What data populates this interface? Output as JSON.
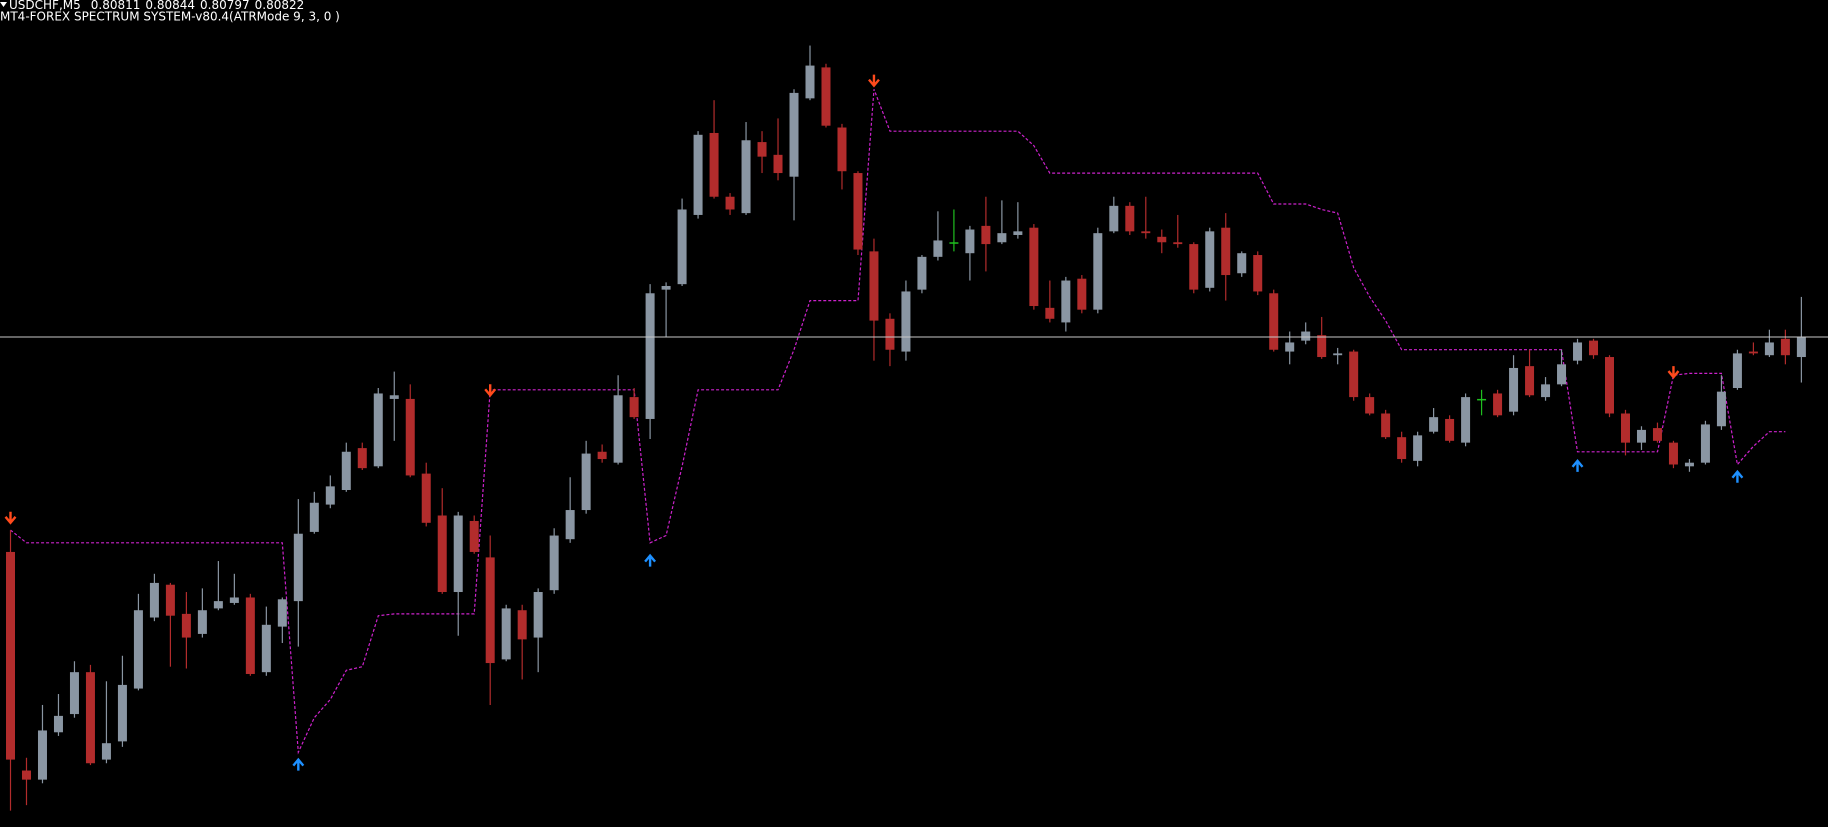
{
  "chart_data": {
    "type": "candlestick",
    "symbol": "USDCHF,M5",
    "indicator": "MT4-FOREX SPECTRUM SYSTEM-v80.4(ATRMode 9, 3, 0 )",
    "background": "#000000",
    "up_color": "#8a96a3",
    "down_color": "#b22c2c",
    "doji_color": "#1fbf1f",
    "ylim": [
      0.80553,
      0.81007
    ],
    "bid_line": {
      "color": "#c8c8c8"
    },
    "open": [
      0.80704,
      0.80584,
      0.80579,
      0.80605,
      0.80615,
      0.80638,
      0.8059,
      0.806,
      0.80629,
      0.80668,
      0.80686,
      0.8067,
      0.80659,
      0.80673,
      0.80676,
      0.80679,
      0.80638,
      0.80663,
      0.80677,
      0.80715,
      0.8073,
      0.80738,
      0.80761,
      0.80751,
      0.80788,
      0.80788,
      0.80747,
      0.80724,
      0.80682,
      0.80721,
      0.80701,
      0.80645,
      0.80672,
      0.80657,
      0.80683,
      0.80711,
      0.80727,
      0.80759,
      0.80753,
      0.80789,
      0.80777,
      0.80848,
      0.80851,
      0.80889,
      0.80934,
      0.80899,
      0.8089,
      0.80929,
      0.80922,
      0.8091,
      0.80953,
      0.8097,
      0.80937,
      0.80912,
      0.80869,
      0.80832,
      0.80814,
      0.80848,
      0.80866,
      0.80874,
      0.80868,
      0.80883,
      0.80874,
      0.80878,
      0.80882,
      0.80838,
      0.8083,
      0.80854,
      0.80837,
      0.8088,
      0.80894,
      0.8088,
      0.80877,
      0.80874,
      0.80873,
      0.80849,
      0.80882,
      0.80857,
      0.80867,
      0.80846,
      0.80814,
      0.8082,
      0.80823,
      0.80812,
      0.80814,
      0.80789,
      0.8078,
      0.80767,
      0.80754,
      0.8077,
      0.80777,
      0.80764,
      0.80788,
      0.80791,
      0.80781,
      0.80806,
      0.80789,
      0.80796,
      0.80809,
      0.8082,
      0.80811,
      0.8078,
      0.80764,
      0.80772,
      0.80764,
      0.80751,
      0.80753,
      0.80773,
      0.80794,
      0.80814,
      0.80812,
      0.80821,
      0.80811
    ],
    "high": [
      0.80716,
      0.80591,
      0.8062,
      0.80626,
      0.80644,
      0.80642,
      0.80633,
      0.80647,
      0.80681,
      0.80692,
      0.80687,
      0.80682,
      0.80684,
      0.80699,
      0.80692,
      0.80681,
      0.80674,
      0.80679,
      0.80733,
      0.80737,
      0.80746,
      0.80764,
      0.80764,
      0.80794,
      0.80803,
      0.80796,
      0.80753,
      0.80739,
      0.80726,
      0.80724,
      0.80713,
      0.80675,
      0.80675,
      0.80684,
      0.80717,
      0.80745,
      0.80765,
      0.80763,
      0.80801,
      0.80794,
      0.80851,
      0.80852,
      0.80898,
      0.80935,
      0.80952,
      0.80901,
      0.8094,
      0.80935,
      0.80942,
      0.80958,
      0.80982,
      0.80972,
      0.80939,
      0.80913,
      0.80876,
      0.80835,
      0.80853,
      0.80867,
      0.80891,
      0.80892,
      0.80883,
      0.80899,
      0.80897,
      0.80896,
      0.80884,
      0.80853,
      0.80855,
      0.80856,
      0.80882,
      0.80899,
      0.80896,
      0.80899,
      0.80881,
      0.80889,
      0.80874,
      0.80882,
      0.8089,
      0.80869,
      0.80869,
      0.80848,
      0.80825,
      0.8083,
      0.80833,
      0.80816,
      0.80815,
      0.80791,
      0.80782,
      0.8077,
      0.8077,
      0.80783,
      0.80779,
      0.80791,
      0.80793,
      0.80793,
      0.80812,
      0.80815,
      0.808,
      0.80815,
      0.80821,
      0.80821,
      0.80812,
      0.80782,
      0.80773,
      0.80775,
      0.80765,
      0.80755,
      0.80776,
      0.80801,
      0.80815,
      0.80819,
      0.80826,
      0.80826,
      0.80844
    ],
    "low": [
      0.80562,
      0.80565,
      0.80577,
      0.80603,
      0.80613,
      0.80587,
      0.80588,
      0.80597,
      0.80628,
      0.80666,
      0.80641,
      0.8064,
      0.80657,
      0.80672,
      0.80675,
      0.80636,
      0.80636,
      0.80654,
      0.80652,
      0.80714,
      0.80728,
      0.80737,
      0.80749,
      0.8075,
      0.80765,
      0.80745,
      0.80718,
      0.80681,
      0.80658,
      0.80703,
      0.8062,
      0.80644,
      0.80634,
      0.80638,
      0.80681,
      0.80709,
      0.80725,
      0.80753,
      0.80752,
      0.80777,
      0.80766,
      0.80822,
      0.8085,
      0.80887,
      0.80898,
      0.80889,
      0.80889,
      0.80912,
      0.80908,
      0.80886,
      0.80952,
      0.80937,
      0.80903,
      0.80867,
      0.80809,
      0.80806,
      0.80809,
      0.80846,
      0.80864,
      0.80869,
      0.80853,
      0.80858,
      0.80873,
      0.80876,
      0.80837,
      0.8083,
      0.80825,
      0.80835,
      0.80835,
      0.80879,
      0.80878,
      0.80876,
      0.80868,
      0.80871,
      0.80846,
      0.80847,
      0.80842,
      0.80855,
      0.80845,
      0.80814,
      0.80807,
      0.80818,
      0.8081,
      0.80807,
      0.80787,
      0.80779,
      0.80766,
      0.80753,
      0.80751,
      0.80769,
      0.80764,
      0.80762,
      0.80779,
      0.80778,
      0.80779,
      0.80789,
      0.80787,
      0.80795,
      0.80807,
      0.8081,
      0.80778,
      0.80757,
      0.8076,
      0.80764,
      0.8075,
      0.80748,
      0.80752,
      0.80771,
      0.80793,
      0.80812,
      0.80811,
      0.80807,
      0.80797
    ],
    "close": [
      0.8059,
      0.80579,
      0.80606,
      0.80614,
      0.80638,
      0.80588,
      0.80599,
      0.80631,
      0.80672,
      0.80687,
      0.80669,
      0.80657,
      0.80672,
      0.80677,
      0.80679,
      0.80637,
      0.80664,
      0.80678,
      0.80714,
      0.80731,
      0.8074,
      0.80759,
      0.8075,
      0.80791,
      0.8079,
      0.80746,
      0.8072,
      0.80682,
      0.80724,
      0.80704,
      0.80643,
      0.80673,
      0.80656,
      0.80682,
      0.80713,
      0.80727,
      0.80758,
      0.80755,
      0.8079,
      0.80778,
      0.80846,
      0.8085,
      0.80892,
      0.80933,
      0.80899,
      0.80892,
      0.8093,
      0.80921,
      0.80912,
      0.80956,
      0.80971,
      0.80938,
      0.80913,
      0.8087,
      0.80831,
      0.80815,
      0.80847,
      0.80866,
      0.80875,
      0.80874,
      0.80881,
      0.80873,
      0.80879,
      0.8088,
      0.80839,
      0.80832,
      0.80853,
      0.80837,
      0.80879,
      0.80894,
      0.8088,
      0.80879,
      0.80874,
      0.80873,
      0.80848,
      0.8088,
      0.80856,
      0.80868,
      0.80847,
      0.80815,
      0.80819,
      0.80825,
      0.80811,
      0.80813,
      0.80789,
      0.8078,
      0.80767,
      0.80755,
      0.80768,
      0.80778,
      0.80765,
      0.80789,
      0.80788,
      0.80779,
      0.80805,
      0.8079,
      0.80796,
      0.80807,
      0.80819,
      0.80812,
      0.8078,
      0.80764,
      0.80771,
      0.80765,
      0.80752,
      0.80753,
      0.80774,
      0.80792,
      0.80813,
      0.80813,
      0.80819,
      0.80812,
      0.80822
    ],
    "stop_line": {
      "color": "#cc22cc",
      "values": [
        0.80716,
        0.80709,
        0.80709,
        0.80709,
        0.80709,
        0.80709,
        0.80709,
        0.80709,
        0.80709,
        0.80709,
        0.80709,
        0.80709,
        0.80709,
        0.80709,
        0.80709,
        0.80709,
        0.80709,
        0.80709,
        0.80594,
        0.80613,
        0.80623,
        0.80639,
        0.80641,
        0.80669,
        0.8067,
        0.8067,
        0.8067,
        0.8067,
        0.8067,
        0.8067,
        0.80793,
        0.80793,
        0.80793,
        0.80793,
        0.80793,
        0.80793,
        0.80793,
        0.80793,
        0.80793,
        0.80793,
        0.80709,
        0.80713,
        0.80751,
        0.80793,
        0.80793,
        0.80793,
        0.80793,
        0.80793,
        0.80793,
        0.80815,
        0.80842,
        0.80842,
        0.80842,
        0.80842,
        0.80958,
        0.80935,
        0.80935,
        0.80935,
        0.80935,
        0.80935,
        0.80935,
        0.80935,
        0.80935,
        0.80935,
        0.80927,
        0.80912,
        0.80912,
        0.80912,
        0.80912,
        0.80912,
        0.80912,
        0.80912,
        0.80912,
        0.80912,
        0.80912,
        0.80912,
        0.80912,
        0.80912,
        0.80912,
        0.80895,
        0.80895,
        0.80895,
        0.80892,
        0.8089,
        0.8086,
        0.80844,
        0.80831,
        0.80815,
        0.80815,
        0.80815,
        0.80815,
        0.80815,
        0.80815,
        0.80815,
        0.80815,
        0.80815,
        0.80815,
        0.80815,
        0.80759,
        0.80759,
        0.80759,
        0.80759,
        0.80759,
        0.80759,
        0.80801,
        0.80802,
        0.80802,
        0.80802,
        0.80752,
        0.80762,
        0.8077,
        0.8077,
        null
      ]
    },
    "sell_arrows": {
      "color": "#ff4a1c",
      "values": [
        0.8072,
        null,
        null,
        null,
        null,
        null,
        null,
        null,
        null,
        null,
        null,
        null,
        null,
        null,
        null,
        null,
        null,
        null,
        null,
        null,
        null,
        null,
        null,
        null,
        null,
        null,
        null,
        null,
        null,
        null,
        0.8079,
        null,
        null,
        null,
        null,
        null,
        null,
        null,
        null,
        null,
        null,
        null,
        null,
        null,
        null,
        null,
        null,
        null,
        null,
        null,
        null,
        null,
        null,
        null,
        0.8096,
        null,
        null,
        null,
        null,
        null,
        null,
        null,
        null,
        null,
        null,
        null,
        null,
        null,
        null,
        null,
        null,
        null,
        null,
        null,
        null,
        null,
        null,
        null,
        null,
        null,
        null,
        null,
        null,
        null,
        null,
        null,
        null,
        null,
        null,
        null,
        null,
        null,
        null,
        null,
        null,
        null,
        null,
        null,
        null,
        null,
        null,
        null,
        null,
        null,
        0.808,
        null,
        null,
        null,
        null,
        null,
        null,
        null,
        null
      ]
    },
    "buy_arrows": {
      "color": "#1e90ff",
      "values": [
        null,
        null,
        null,
        null,
        null,
        null,
        null,
        null,
        null,
        null,
        null,
        null,
        null,
        null,
        null,
        null,
        null,
        null,
        0.8059,
        null,
        null,
        null,
        null,
        null,
        null,
        null,
        null,
        null,
        null,
        null,
        null,
        null,
        null,
        null,
        null,
        null,
        null,
        null,
        null,
        null,
        0.80702,
        null,
        null,
        null,
        null,
        null,
        null,
        null,
        null,
        null,
        null,
        null,
        null,
        null,
        null,
        null,
        null,
        null,
        null,
        null,
        null,
        null,
        null,
        null,
        null,
        null,
        null,
        null,
        null,
        null,
        null,
        null,
        null,
        null,
        null,
        null,
        null,
        null,
        null,
        null,
        null,
        null,
        null,
        null,
        null,
        null,
        null,
        null,
        null,
        null,
        null,
        null,
        null,
        null,
        null,
        null,
        null,
        null,
        0.80754,
        null,
        null,
        null,
        null,
        null,
        null,
        null,
        null,
        null,
        0.80748,
        null,
        null,
        null,
        null
      ]
    }
  }
}
